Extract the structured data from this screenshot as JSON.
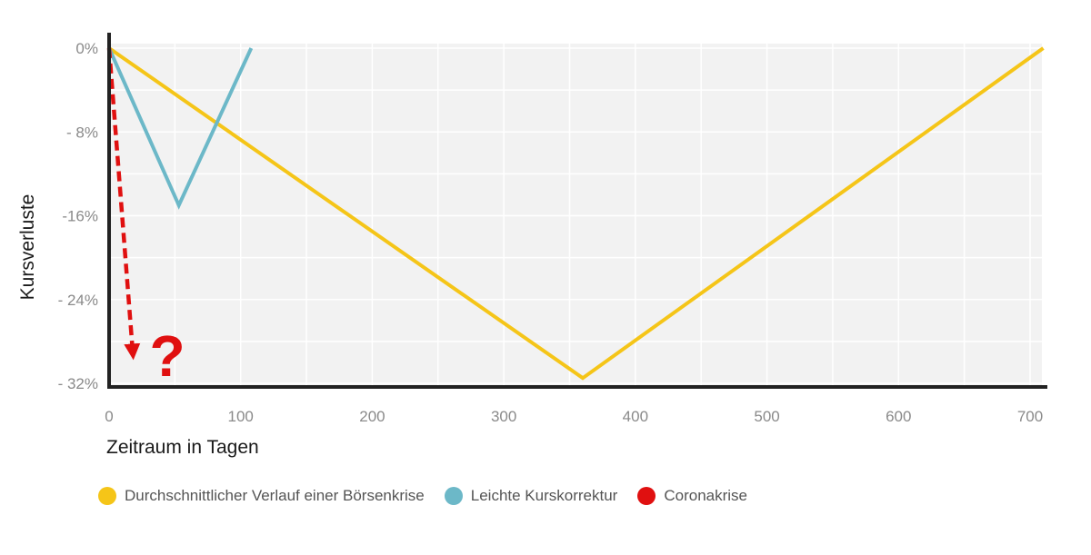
{
  "chart_data": {
    "type": "line",
    "xlabel": "Zeitraum in Tagen",
    "ylabel": "Kursverluste",
    "xlim": [
      0,
      700
    ],
    "ylim": [
      -32,
      0
    ],
    "x_ticks": [
      "0",
      "100",
      "200",
      "300",
      "400",
      "500",
      "600",
      "700"
    ],
    "y_ticks": [
      "0%",
      "- 8%",
      "-16%",
      "- 24%",
      "- 32%"
    ],
    "grid": true,
    "legend_position": "bottom-left",
    "series": [
      {
        "name": "Durchschnittlicher Verlauf einer Börsenkrise",
        "color": "#f5c518",
        "style": "solid",
        "points": [
          [
            0,
            0
          ],
          [
            360,
            -31.5
          ],
          [
            710,
            0
          ]
        ]
      },
      {
        "name": "Leichte Kurskorrektur",
        "color": "#6cb8c8",
        "style": "solid",
        "points": [
          [
            0,
            0
          ],
          [
            53,
            -15
          ],
          [
            108,
            0
          ]
        ]
      },
      {
        "name": "Coronakrise",
        "color": "#e01010",
        "style": "dashed-arrow",
        "points": [
          [
            0,
            0
          ],
          [
            18,
            -29
          ]
        ]
      }
    ],
    "annotation": {
      "text": "?",
      "color": "#e01010"
    }
  }
}
